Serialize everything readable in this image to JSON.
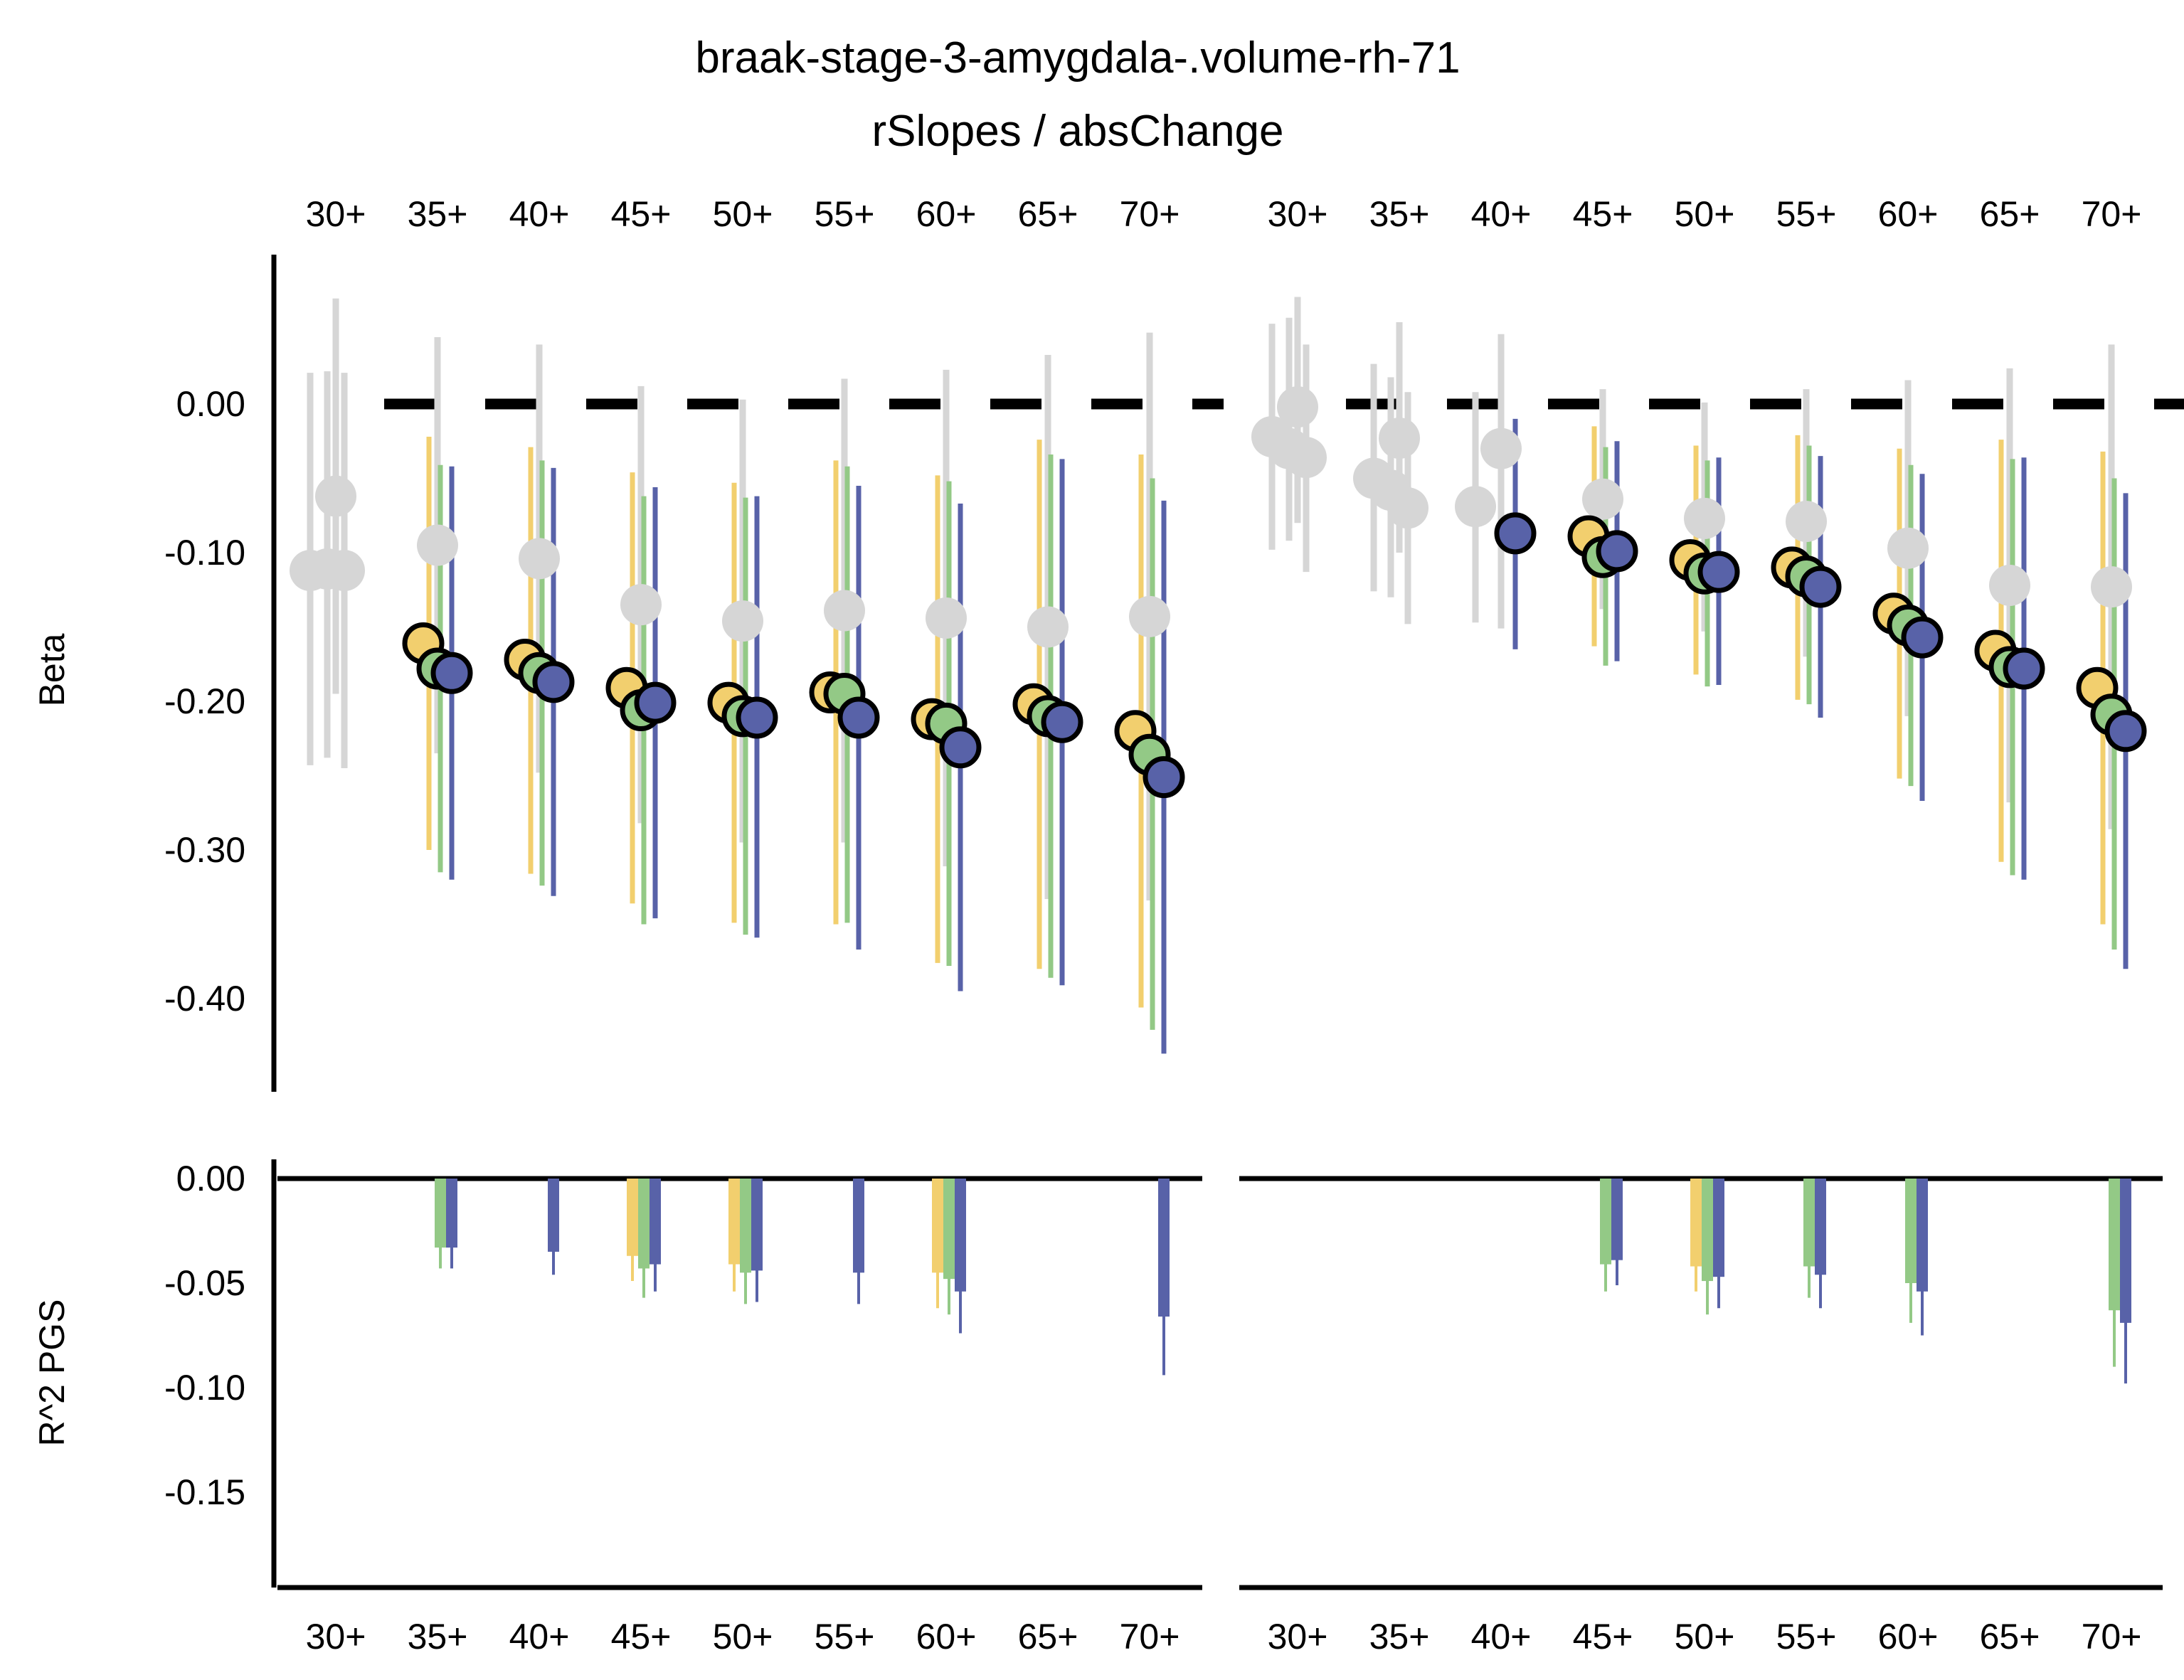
{
  "chart_data": {
    "type": "scatter",
    "title": "braak-stage-3-amygdala-.volume-rh-71",
    "subtitle": "rSlopes / absChange",
    "categories": [
      "30+",
      "35+",
      "40+",
      "45+",
      "50+",
      "55+",
      "60+",
      "65+",
      "70+"
    ],
    "colors": {
      "gray": "#d6d6d6",
      "yellow": "#f2cf6e",
      "green": "#93c986",
      "blue": "#5862a8",
      "zero_line": "#000000"
    },
    "beta_panel": {
      "ylabel": "Beta",
      "ylim": [
        -0.46,
        0.1
      ],
      "yticks": [
        0.0,
        -0.1,
        -0.2,
        -0.3,
        -0.4
      ],
      "ytick_labels": [
        "0.00",
        "-0.10",
        "-0.20",
        "-0.30",
        "-0.40"
      ],
      "facets": [
        {
          "series": [
            {
              "color": "gray",
              "points": [
                {
                  "x": "30+",
                  "offset": -1.5,
                  "y": -0.112,
                  "lo": -0.243,
                  "hi": 0.021
                },
                {
                  "x": "30+",
                  "offset": -0.5,
                  "y": -0.111,
                  "lo": -0.238,
                  "hi": 0.022
                },
                {
                  "x": "30+",
                  "offset": 0.0,
                  "y": -0.062,
                  "lo": -0.195,
                  "hi": 0.071
                },
                {
                  "x": "30+",
                  "offset": 0.5,
                  "y": -0.112,
                  "lo": -0.245,
                  "hi": 0.021
                },
                {
                  "x": "35+",
                  "offset": 0.0,
                  "y": -0.095,
                  "lo": -0.235,
                  "hi": 0.045
                },
                {
                  "x": "40+",
                  "offset": 0.0,
                  "y": -0.104,
                  "lo": -0.248,
                  "hi": 0.04
                },
                {
                  "x": "45+",
                  "offset": 0.0,
                  "y": -0.135,
                  "lo": -0.282,
                  "hi": 0.012
                },
                {
                  "x": "50+",
                  "offset": 0.0,
                  "y": -0.146,
                  "lo": -0.295,
                  "hi": 0.003
                },
                {
                  "x": "55+",
                  "offset": 0.0,
                  "y": -0.139,
                  "lo": -0.295,
                  "hi": 0.017
                },
                {
                  "x": "60+",
                  "offset": 0.0,
                  "y": -0.144,
                  "lo": -0.311,
                  "hi": 0.023
                },
                {
                  "x": "65+",
                  "offset": 0.0,
                  "y": -0.15,
                  "lo": -0.333,
                  "hi": 0.033
                },
                {
                  "x": "70+",
                  "offset": 0.0,
                  "y": -0.143,
                  "lo": -0.334,
                  "hi": 0.048
                }
              ]
            },
            {
              "color": "yellow",
              "points": [
                {
                  "x": "35+",
                  "y": -0.161,
                  "lo": -0.3,
                  "hi": -0.022
                },
                {
                  "x": "40+",
                  "y": -0.172,
                  "lo": -0.316,
                  "hi": -0.029
                },
                {
                  "x": "45+",
                  "y": -0.191,
                  "lo": -0.336,
                  "hi": -0.046
                },
                {
                  "x": "50+",
                  "y": -0.201,
                  "lo": -0.349,
                  "hi": -0.053
                },
                {
                  "x": "55+",
                  "y": -0.194,
                  "lo": -0.35,
                  "hi": -0.038
                },
                {
                  "x": "60+",
                  "y": -0.212,
                  "lo": -0.376,
                  "hi": -0.048
                },
                {
                  "x": "65+",
                  "y": -0.202,
                  "lo": -0.38,
                  "hi": -0.024
                },
                {
                  "x": "70+",
                  "y": -0.22,
                  "lo": -0.406,
                  "hi": -0.034
                }
              ]
            },
            {
              "color": "green",
              "points": [
                {
                  "x": "35+",
                  "y": -0.178,
                  "lo": -0.315,
                  "hi": -0.041
                },
                {
                  "x": "40+",
                  "y": -0.181,
                  "lo": -0.324,
                  "hi": -0.038
                },
                {
                  "x": "45+",
                  "y": -0.206,
                  "lo": -0.35,
                  "hi": -0.062
                },
                {
                  "x": "50+",
                  "y": -0.21,
                  "lo": -0.357,
                  "hi": -0.063
                },
                {
                  "x": "55+",
                  "y": -0.195,
                  "lo": -0.349,
                  "hi": -0.042
                },
                {
                  "x": "60+",
                  "y": -0.215,
                  "lo": -0.378,
                  "hi": -0.052
                },
                {
                  "x": "65+",
                  "y": -0.21,
                  "lo": -0.386,
                  "hi": -0.034
                },
                {
                  "x": "70+",
                  "y": -0.236,
                  "lo": -0.421,
                  "hi": -0.05
                }
              ]
            },
            {
              "color": "blue",
              "points": [
                {
                  "x": "35+",
                  "y": -0.181,
                  "lo": -0.32,
                  "hi": -0.042
                },
                {
                  "x": "40+",
                  "y": -0.187,
                  "lo": -0.331,
                  "hi": -0.043
                },
                {
                  "x": "45+",
                  "y": -0.201,
                  "lo": -0.346,
                  "hi": -0.056
                },
                {
                  "x": "50+",
                  "y": -0.211,
                  "lo": -0.359,
                  "hi": -0.062
                },
                {
                  "x": "55+",
                  "y": -0.211,
                  "lo": -0.367,
                  "hi": -0.055
                },
                {
                  "x": "60+",
                  "y": -0.231,
                  "lo": -0.395,
                  "hi": -0.067
                },
                {
                  "x": "65+",
                  "y": -0.214,
                  "lo": -0.391,
                  "hi": -0.037
                },
                {
                  "x": "70+",
                  "y": -0.251,
                  "lo": -0.437,
                  "hi": -0.065
                }
              ]
            }
          ]
        },
        {
          "series": [
            {
              "color": "gray",
              "points": [
                {
                  "x": "30+",
                  "offset": -1.5,
                  "y": -0.022,
                  "lo": -0.098,
                  "hi": 0.054
                },
                {
                  "x": "30+",
                  "offset": -0.5,
                  "y": -0.03,
                  "lo": -0.092,
                  "hi": 0.058
                },
                {
                  "x": "30+",
                  "offset": 0.0,
                  "y": -0.002,
                  "lo": -0.08,
                  "hi": 0.072
                },
                {
                  "x": "30+",
                  "offset": 0.5,
                  "y": -0.036,
                  "lo": -0.113,
                  "hi": 0.04
                },
                {
                  "x": "35+",
                  "offset": -1.5,
                  "y": -0.05,
                  "lo": -0.126,
                  "hi": 0.027
                },
                {
                  "x": "35+",
                  "offset": -0.5,
                  "y": -0.058,
                  "lo": -0.13,
                  "hi": 0.018
                },
                {
                  "x": "35+",
                  "offset": 0.0,
                  "y": -0.023,
                  "lo": -0.1,
                  "hi": 0.055
                },
                {
                  "x": "35+",
                  "offset": 0.5,
                  "y": -0.07,
                  "lo": -0.148,
                  "hi": 0.008
                },
                {
                  "x": "40+",
                  "offset": -1.5,
                  "y": -0.069,
                  "lo": -0.147,
                  "hi": 0.008
                },
                {
                  "x": "40+",
                  "offset": 0.0,
                  "y": -0.03,
                  "lo": -0.151,
                  "hi": 0.047
                },
                {
                  "x": "45+",
                  "offset": 0.0,
                  "y": -0.064,
                  "lo": -0.138,
                  "hi": 0.01
                },
                {
                  "x": "50+",
                  "offset": 0.0,
                  "y": -0.077,
                  "lo": -0.153,
                  "hi": 0.001
                },
                {
                  "x": "55+",
                  "offset": 0.0,
                  "y": -0.079,
                  "lo": -0.17,
                  "hi": 0.01
                },
                {
                  "x": "60+",
                  "offset": 0.0,
                  "y": -0.097,
                  "lo": -0.21,
                  "hi": 0.016
                },
                {
                  "x": "65+",
                  "offset": 0.0,
                  "y": -0.122,
                  "lo": -0.268,
                  "hi": 0.024
                },
                {
                  "x": "70+",
                  "offset": 0.0,
                  "y": -0.123,
                  "lo": -0.286,
                  "hi": 0.04
                }
              ]
            },
            {
              "color": "yellow",
              "points": [
                {
                  "x": "45+",
                  "y": -0.089,
                  "lo": -0.163,
                  "hi": -0.015
                },
                {
                  "x": "50+",
                  "y": -0.105,
                  "lo": -0.182,
                  "hi": -0.028
                },
                {
                  "x": "55+",
                  "y": -0.11,
                  "lo": -0.199,
                  "hi": -0.021
                },
                {
                  "x": "60+",
                  "y": -0.141,
                  "lo": -0.252,
                  "hi": -0.03
                },
                {
                  "x": "65+",
                  "y": -0.166,
                  "lo": -0.308,
                  "hi": -0.024
                },
                {
                  "x": "70+",
                  "y": -0.191,
                  "lo": -0.35,
                  "hi": -0.032
                }
              ]
            },
            {
              "color": "green",
              "points": [
                {
                  "x": "45+",
                  "y": -0.103,
                  "lo": -0.176,
                  "hi": -0.029
                },
                {
                  "x": "50+",
                  "y": -0.114,
                  "lo": -0.19,
                  "hi": -0.038
                },
                {
                  "x": "55+",
                  "y": -0.116,
                  "lo": -0.202,
                  "hi": -0.028
                },
                {
                  "x": "60+",
                  "y": -0.149,
                  "lo": -0.257,
                  "hi": -0.041
                },
                {
                  "x": "65+",
                  "y": -0.177,
                  "lo": -0.317,
                  "hi": -0.037
                },
                {
                  "x": "70+",
                  "y": -0.209,
                  "lo": -0.367,
                  "hi": -0.05
                }
              ]
            },
            {
              "color": "blue",
              "points": [
                {
                  "x": "40+",
                  "y": -0.087,
                  "lo": -0.165,
                  "hi": -0.01
                },
                {
                  "x": "45+",
                  "y": -0.099,
                  "lo": -0.173,
                  "hi": -0.025
                },
                {
                  "x": "50+",
                  "y": -0.113,
                  "lo": -0.189,
                  "hi": -0.036
                },
                {
                  "x": "55+",
                  "y": -0.123,
                  "lo": -0.211,
                  "hi": -0.035
                },
                {
                  "x": "60+",
                  "y": -0.157,
                  "lo": -0.267,
                  "hi": -0.047
                },
                {
                  "x": "65+",
                  "y": -0.178,
                  "lo": -0.32,
                  "hi": -0.036
                },
                {
                  "x": "70+",
                  "y": -0.22,
                  "lo": -0.38,
                  "hi": -0.06
                }
              ]
            }
          ]
        }
      ]
    },
    "r2_panel": {
      "ylabel": "R^2 PGS",
      "ylim": [
        -0.193,
        0.01
      ],
      "yticks": [
        0.0,
        -0.05,
        -0.1,
        -0.15
      ],
      "ytick_labels": [
        "0.00",
        "-0.05",
        "-0.10",
        "-0.15"
      ],
      "facets": [
        {
          "series": [
            {
              "color": "yellow",
              "bars": [
                {
                  "x": "45+",
                  "value": -0.037,
                  "lo": -0.049
                },
                {
                  "x": "50+",
                  "value": -0.041,
                  "lo": -0.054
                },
                {
                  "x": "60+",
                  "value": -0.045,
                  "lo": -0.062
                }
              ]
            },
            {
              "color": "green",
              "bars": [
                {
                  "x": "35+",
                  "value": -0.033,
                  "lo": -0.043
                },
                {
                  "x": "45+",
                  "value": -0.043,
                  "lo": -0.057
                },
                {
                  "x": "50+",
                  "value": -0.045,
                  "lo": -0.06
                },
                {
                  "x": "60+",
                  "value": -0.048,
                  "lo": -0.065
                }
              ]
            },
            {
              "color": "blue",
              "bars": [
                {
                  "x": "35+",
                  "value": -0.033,
                  "lo": -0.043
                },
                {
                  "x": "40+",
                  "value": -0.035,
                  "lo": -0.046
                },
                {
                  "x": "45+",
                  "value": -0.041,
                  "lo": -0.054
                },
                {
                  "x": "50+",
                  "value": -0.044,
                  "lo": -0.059
                },
                {
                  "x": "55+",
                  "value": -0.045,
                  "lo": -0.06
                },
                {
                  "x": "60+",
                  "value": -0.054,
                  "lo": -0.074
                },
                {
                  "x": "70+",
                  "value": -0.066,
                  "lo": -0.094
                }
              ]
            }
          ]
        },
        {
          "series": [
            {
              "color": "yellow",
              "bars": [
                {
                  "x": "50+",
                  "value": -0.042,
                  "lo": -0.054
                }
              ]
            },
            {
              "color": "green",
              "bars": [
                {
                  "x": "45+",
                  "value": -0.041,
                  "lo": -0.054
                },
                {
                  "x": "50+",
                  "value": -0.049,
                  "lo": -0.065
                },
                {
                  "x": "55+",
                  "value": -0.042,
                  "lo": -0.057
                },
                {
                  "x": "60+",
                  "value": -0.05,
                  "lo": -0.069
                },
                {
                  "x": "70+",
                  "value": -0.063,
                  "lo": -0.09
                }
              ]
            },
            {
              "color": "blue",
              "bars": [
                {
                  "x": "45+",
                  "value": -0.039,
                  "lo": -0.051
                },
                {
                  "x": "50+",
                  "value": -0.047,
                  "lo": -0.062
                },
                {
                  "x": "55+",
                  "value": -0.046,
                  "lo": -0.062
                },
                {
                  "x": "60+",
                  "value": -0.054,
                  "lo": -0.075
                },
                {
                  "x": "70+",
                  "value": -0.069,
                  "lo": -0.098
                }
              ]
            }
          ]
        }
      ]
    }
  }
}
